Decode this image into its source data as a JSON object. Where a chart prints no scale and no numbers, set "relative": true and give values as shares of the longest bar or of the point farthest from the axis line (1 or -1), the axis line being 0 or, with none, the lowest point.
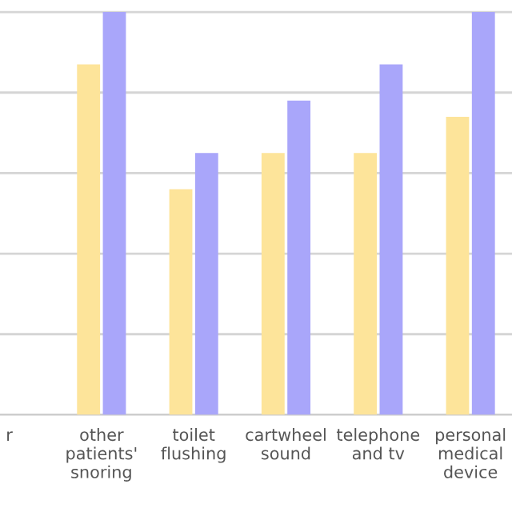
{
  "chart_data": {
    "type": "bar",
    "relative": true,
    "grid": "y",
    "legend": false,
    "categories": [
      "r",
      "other patients' snoring",
      "toilet flushing",
      "cartwheel sound",
      "telephone and tv",
      "personal medical device"
    ],
    "series": [
      {
        "color": "#fde49a",
        "values": [
          null,
          0.87,
          0.56,
          0.65,
          0.65,
          0.74
        ]
      },
      {
        "color": "#a9a6fa",
        "values": [
          null,
          1,
          0.65,
          0.78,
          0.87,
          1
        ]
      }
    ]
  }
}
